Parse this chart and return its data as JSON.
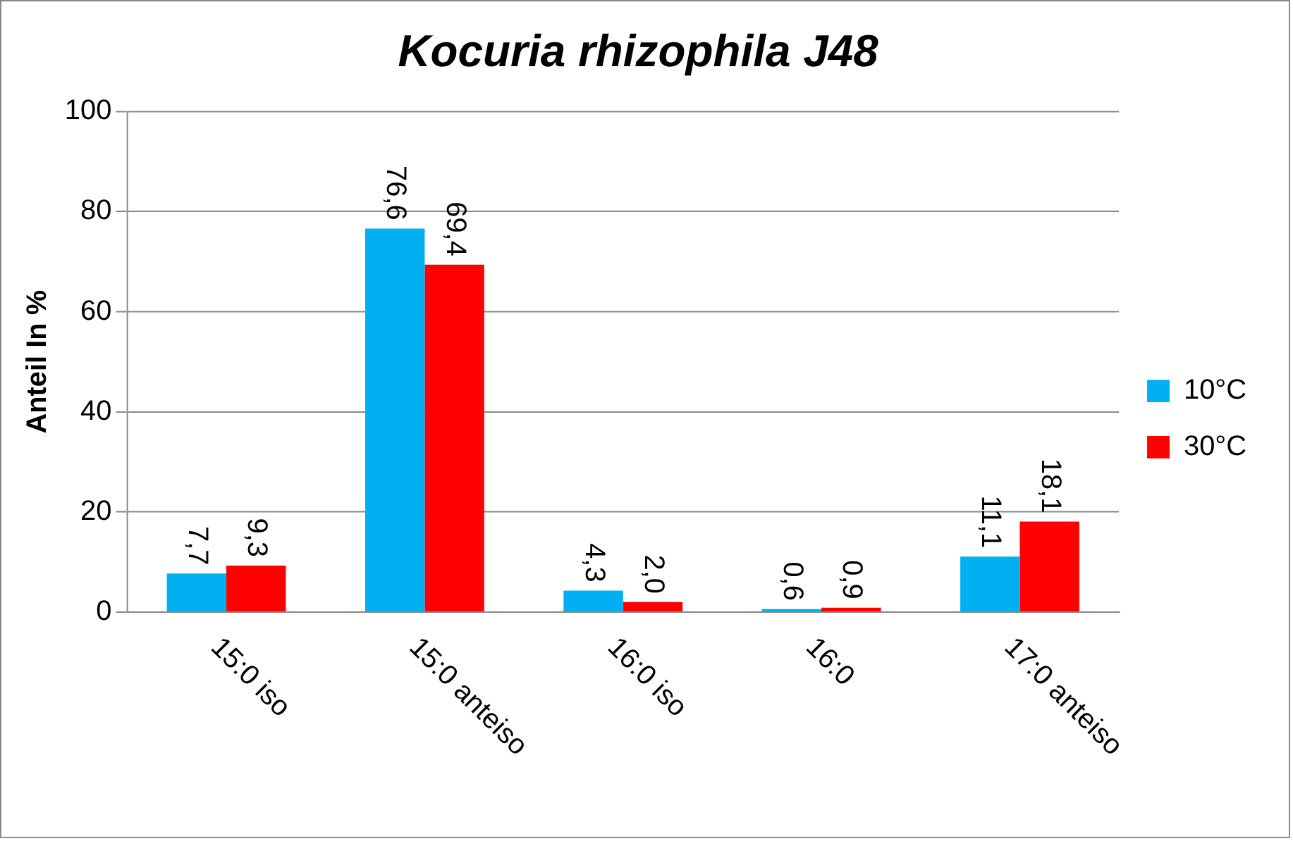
{
  "chart_data": {
    "type": "bar",
    "title": "Kocuria rhizophila J48",
    "ylabel": "Anteil In %",
    "categories": [
      "15:0 iso",
      "15:0 anteiso",
      "16:0 iso",
      "16:0",
      "17:0 anteiso"
    ],
    "series": [
      {
        "name": "10°C",
        "color": "#00b0f0",
        "values": [
          7.7,
          76.6,
          4.3,
          0.6,
          11.1
        ],
        "value_labels": [
          "7,7",
          "76,6",
          "4,3",
          "0,6",
          "11,1"
        ]
      },
      {
        "name": "30°C",
        "color": "#ff0000",
        "values": [
          9.3,
          69.4,
          2.0,
          0.9,
          18.1
        ],
        "value_labels": [
          "9,3",
          "69,4",
          "2,0",
          "0,9",
          "18,1"
        ]
      }
    ],
    "ylim": [
      0,
      100
    ],
    "yticks": [
      0,
      20,
      40,
      60,
      80,
      100
    ],
    "grid": "y",
    "legend": "right"
  }
}
